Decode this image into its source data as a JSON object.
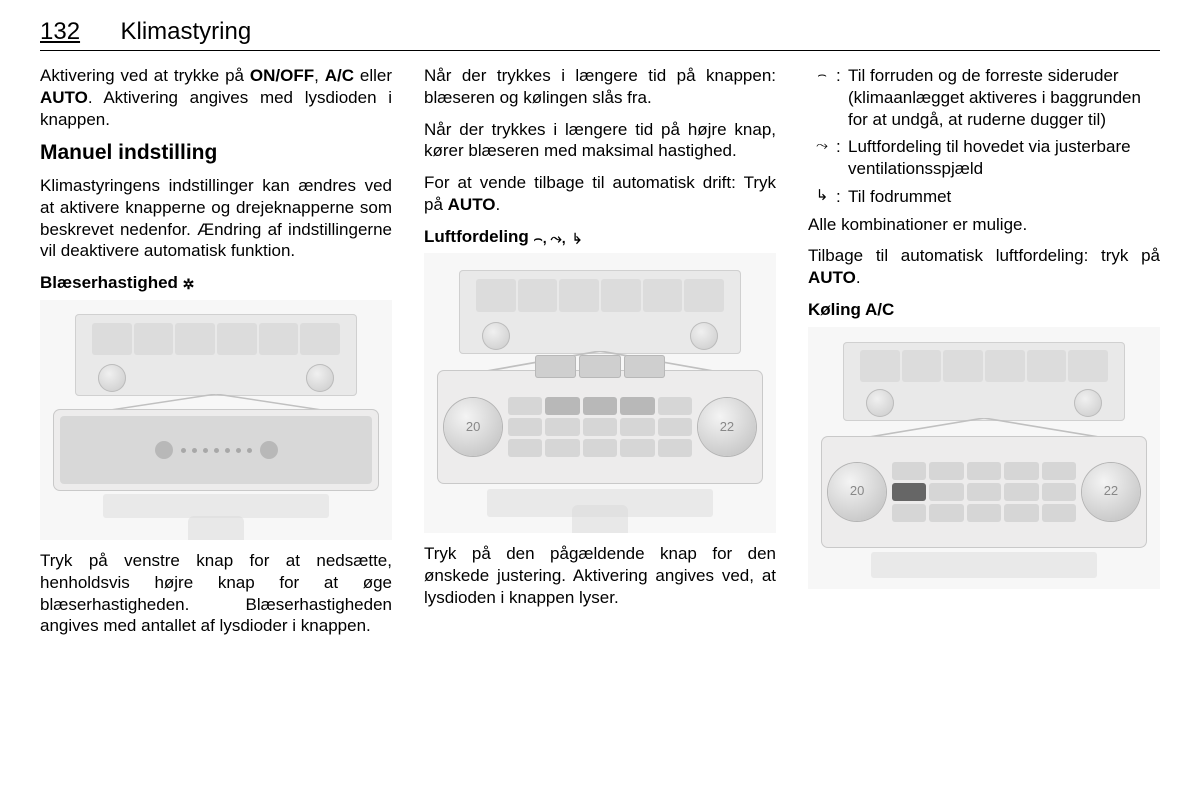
{
  "page": {
    "number": "132",
    "chapter": "Klimastyring"
  },
  "col1": {
    "p1a": "Aktivering ved at trykke på ",
    "onoff": "ON/OFF",
    "p1b": ", ",
    "ac": "A/C",
    "p1c": " eller ",
    "auto": "AUTO",
    "p1d": ". Aktivering angives med lysdioden i knappen.",
    "h2": "Manuel indstilling",
    "p2": "Klimastyringens indstillinger kan ændres ved at aktivere knapperne og drejeknapperne som beskrevet nedenfor. Ændring af indstillingerne vil deaktivere automatisk funktion.",
    "h3": "Blæserhastighed ",
    "fan_icon": "✲",
    "p3": "Tryk på venstre knap for at nedsætte, henholdsvis højre knap for at øge blæserhastigheden. Blæserhastigheden angives med antallet af lysdioder i knappen."
  },
  "col2": {
    "p1": "Når der trykkes i længere tid på knappen: blæseren og kølingen slås fra.",
    "p2": "Når der trykkes i længere tid på højre knap, kører blæseren med maksimal hastighed.",
    "p3a": "For at vende tilbage til automatisk drift: Tryk på ",
    "auto": "AUTO",
    "p3b": ".",
    "h3": "Luftfordeling ",
    "icons": "⌢, ⤳, ↳",
    "p4": "Tryk på den pågældende knap for den ønskede justering. Aktivering angives ved, at lysdioden i knappen lyser."
  },
  "col3": {
    "defs": [
      {
        "icon": "⌢",
        "text": "Til forruden og de forreste sideruder (klimaanlægget aktiveres i baggrunden for at undgå, at ruderne dugger til)"
      },
      {
        "icon": "⤳",
        "text": "Luftfordeling til hovedet via justerbare ventilationsspjæld"
      },
      {
        "icon": "↳",
        "text": "Til fodrummet"
      }
    ],
    "p1": "Alle kombinationer er mulige.",
    "p2a": "Tilbage til automatisk luftfordeling: tryk på ",
    "auto": "AUTO",
    "p2b": ".",
    "h3": "Køling A/C"
  },
  "panels": {
    "temp_left": "20",
    "temp_right": "22",
    "colors": {
      "bg": "#f7f7f7",
      "button": "#d6d6d6",
      "dial": "#c8c8c8",
      "highlight": "#666666"
    }
  }
}
